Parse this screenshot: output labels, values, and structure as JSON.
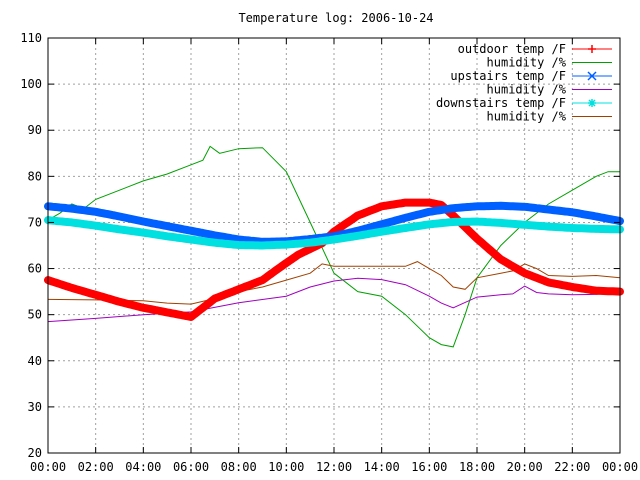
{
  "chart_data": {
    "type": "line",
    "title": "Temperature log: 2006-10-24",
    "xlabel": "",
    "ylabel": "",
    "xlim": [
      0,
      24
    ],
    "ylim": [
      20,
      110
    ],
    "grid": true,
    "legend_position": "top-right",
    "x_tick_labels": [
      "00:00",
      "02:00",
      "04:00",
      "06:00",
      "08:00",
      "10:00",
      "12:00",
      "14:00",
      "16:00",
      "18:00",
      "20:00",
      "22:00",
      "00:00"
    ],
    "y_tick_labels": [
      "20",
      "30",
      "40",
      "50",
      "60",
      "70",
      "80",
      "90",
      "100",
      "110"
    ],
    "x_ticks": [
      0,
      2,
      4,
      6,
      8,
      10,
      12,
      14,
      16,
      18,
      20,
      22,
      24
    ],
    "y_ticks": [
      20,
      30,
      40,
      50,
      60,
      70,
      80,
      90,
      100,
      110
    ],
    "series": [
      {
        "name": "outdoor temp /F",
        "color": "#ff0000",
        "marker": "plus",
        "x": [
          0,
          1,
          2,
          3,
          4,
          5,
          5.5,
          6,
          6.5,
          7,
          8,
          9,
          9.8,
          10.5,
          11.5,
          12,
          13,
          14,
          15,
          16,
          16.5,
          17,
          18,
          19,
          20,
          21,
          22,
          23,
          24
        ],
        "y": [
          57.5,
          55.8,
          54.3,
          52.8,
          51.5,
          50.5,
          50.0,
          49.5,
          51.5,
          53.5,
          55.5,
          57.5,
          60.5,
          63,
          65.5,
          68,
          71.5,
          73.5,
          74.3,
          74.3,
          73.8,
          71.5,
          66.5,
          62,
          59,
          57,
          56,
          55.2,
          55
        ]
      },
      {
        "name": "humidity /%",
        "color": "#00a000",
        "marker": "none",
        "x": [
          0,
          0.5,
          1,
          1.5,
          2,
          3,
          4,
          5,
          6,
          6.5,
          6.8,
          7.2,
          8,
          9,
          10,
          11,
          12,
          13,
          14,
          15,
          16,
          16.5,
          17,
          17.5,
          18,
          19,
          20,
          21,
          22,
          23,
          23.5,
          24
        ],
        "y": [
          70.5,
          72,
          74,
          73,
          75,
          77,
          79,
          80.5,
          82.5,
          83.5,
          86.5,
          85,
          86,
          86.2,
          81,
          70,
          59,
          55,
          54,
          50,
          45,
          43.5,
          43,
          50,
          58,
          65,
          70,
          74,
          77,
          80,
          81,
          81
        ]
      },
      {
        "name": "upstairs temp /F",
        "color": "#0060ff",
        "marker": "x",
        "x": [
          0,
          1,
          2,
          3,
          4,
          5,
          6,
          7,
          8,
          9,
          10,
          11,
          12,
          13,
          14,
          15,
          16,
          17,
          18,
          19,
          20,
          21,
          22,
          23,
          24
        ],
        "y": [
          73.5,
          73,
          72.3,
          71.3,
          70.2,
          69.2,
          68.2,
          67.2,
          66.3,
          65.8,
          65.9,
          66.4,
          67,
          68.2,
          69.6,
          71,
          72.3,
          73.1,
          73.5,
          73.6,
          73.4,
          72.8,
          72.2,
          71.3,
          70.3
        ]
      },
      {
        "name": "humidity /%",
        "color": "#a000c0",
        "marker": "none",
        "x": [
          0,
          2,
          4,
          6,
          8,
          10,
          11,
          12,
          13,
          14,
          15,
          16,
          16.5,
          17,
          18,
          19,
          19.5,
          20,
          20.5,
          21,
          22,
          23,
          24
        ],
        "y": [
          48.5,
          49.2,
          50,
          50.6,
          52.6,
          54,
          56,
          57.3,
          57.9,
          57.6,
          56.5,
          54,
          52.5,
          51.5,
          53.8,
          54.3,
          54.5,
          56.2,
          54.8,
          54.5,
          54.3,
          54.4,
          54.8
        ]
      },
      {
        "name": "downstairs temp /F",
        "color": "#00e0e0",
        "marker": "star",
        "x": [
          0,
          1,
          2,
          3,
          4,
          5,
          6,
          7,
          8,
          9,
          10,
          11,
          12,
          13,
          14,
          15,
          16,
          17,
          18,
          19,
          20,
          21,
          22,
          23,
          24
        ],
        "y": [
          70.5,
          70,
          69.3,
          68.5,
          67.8,
          67,
          66.3,
          65.6,
          65.1,
          65,
          65.2,
          65.6,
          66.3,
          67.1,
          68,
          68.8,
          69.6,
          70.1,
          70.2,
          69.9,
          69.5,
          69.1,
          68.8,
          68.6,
          68.5
        ]
      },
      {
        "name": "humidity /%",
        "color": "#a04000",
        "marker": "none",
        "x": [
          0,
          2,
          4,
          5,
          6,
          7,
          8,
          9,
          10,
          11,
          11.5,
          12,
          13,
          14,
          15,
          15.5,
          16,
          16.5,
          17,
          17.5,
          18,
          19,
          19.5,
          20,
          20.5,
          21,
          22,
          23,
          24
        ],
        "y": [
          53.3,
          53.2,
          53,
          52.5,
          52.3,
          53.5,
          55,
          56,
          57.5,
          59,
          61,
          60.5,
          60.5,
          60.5,
          60.5,
          61.5,
          60,
          58.5,
          56,
          55.5,
          58,
          59,
          59.5,
          61,
          60,
          58.5,
          58.3,
          58.5,
          58
        ]
      }
    ]
  }
}
